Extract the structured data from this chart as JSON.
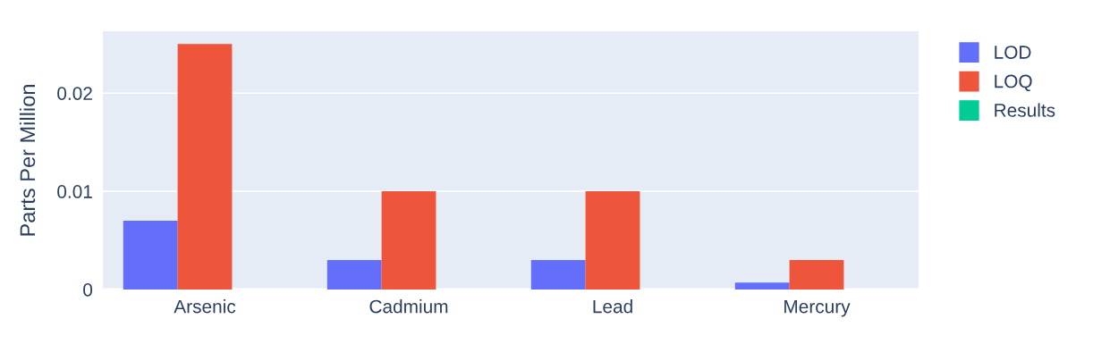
{
  "chart_data": {
    "type": "bar",
    "ylabel": "Parts Per Million",
    "categories": [
      "Arsenic",
      "Cadmium",
      "Lead",
      "Mercury"
    ],
    "series": [
      {
        "name": "LOD",
        "color": "#636efa",
        "values": [
          0.007,
          0.003,
          0.003,
          0.0007
        ]
      },
      {
        "name": "LOQ",
        "color": "#ef553b",
        "values": [
          0.025,
          0.01,
          0.01,
          0.003
        ]
      },
      {
        "name": "Results",
        "color": "#00cc96",
        "values": [
          0,
          0,
          0,
          0
        ]
      }
    ],
    "ylim": [
      0,
      0.0263
    ],
    "yticks": [
      0,
      0.01,
      0.02
    ],
    "grid": "y",
    "legend": "top right"
  }
}
